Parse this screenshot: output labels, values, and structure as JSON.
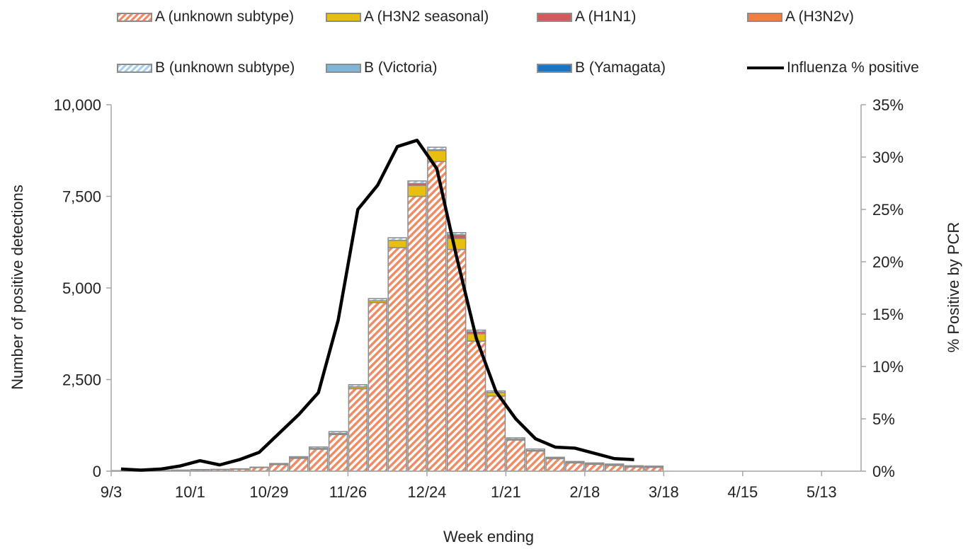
{
  "legend": {
    "items": [
      {
        "key": "a_unknown",
        "label": "A (unknown subtype)",
        "swatch": "hatch-orange"
      },
      {
        "key": "a_h3n2",
        "label": "A (H3N2 seasonal)",
        "swatch": "solid",
        "color": "#E8BE10"
      },
      {
        "key": "a_h1n1",
        "label": "A (H1N1)",
        "swatch": "solid",
        "color": "#D25A5A"
      },
      {
        "key": "a_h3n2v",
        "label": "A (H3N2v)",
        "swatch": "solid",
        "color": "#EE7E46"
      },
      {
        "key": "b_unknown",
        "label": "B (unknown subtype)",
        "swatch": "hatch-blue"
      },
      {
        "key": "b_victoria",
        "label": "B (Victoria)",
        "swatch": "solid",
        "color": "#7FB6D8"
      },
      {
        "key": "b_yamagata",
        "label": "B (Yamagata)",
        "swatch": "solid",
        "color": "#1D75C2"
      },
      {
        "key": "pct",
        "label": "Influenza % positive",
        "swatch": "line",
        "color": "#000000"
      }
    ]
  },
  "chart_data": {
    "type": "bar",
    "stacked": true,
    "xlabel": "Week ending",
    "ylabel": "Number of positive detections",
    "y2label": "% Positive by PCR",
    "ylim": [
      0,
      10000
    ],
    "y2lim": [
      0,
      35
    ],
    "yticks": [
      "0",
      "2,500",
      "5,000",
      "7,500",
      "10,000"
    ],
    "y2ticks": [
      "0%",
      "5%",
      "10%",
      "15%",
      "20%",
      "25%",
      "30%",
      "35%"
    ],
    "xtick_labels": [
      "9/3",
      "10/1",
      "10/29",
      "11/26",
      "12/24",
      "1/21",
      "2/18",
      "3/18",
      "4/15",
      "5/13"
    ],
    "categories": [
      "9/3",
      "9/10",
      "9/17",
      "9/24",
      "10/1",
      "10/8",
      "10/15",
      "10/22",
      "10/29",
      "11/5",
      "11/12",
      "11/19",
      "11/26",
      "12/3",
      "12/10",
      "12/17",
      "12/24",
      "12/31",
      "1/7",
      "1/14",
      "1/21",
      "1/28",
      "2/4",
      "2/11",
      "2/18",
      "2/25",
      "3/4",
      "3/11",
      "3/18",
      "3/25",
      "4/1",
      "4/8",
      "4/15",
      "4/22",
      "4/29",
      "5/6",
      "5/13",
      "5/20"
    ],
    "series": [
      {
        "name": "A (unknown subtype)",
        "color": "#F08C64",
        "pattern": "hatch-orange",
        "values": [
          10,
          10,
          15,
          25,
          40,
          45,
          60,
          100,
          180,
          350,
          600,
          1000,
          2250,
          4600,
          6100,
          7500,
          8450,
          6050,
          3550,
          2050,
          850,
          550,
          340,
          230,
          190,
          160,
          120,
          110,
          null,
          null,
          null,
          null,
          null,
          null,
          null,
          null,
          null,
          null
        ]
      },
      {
        "name": "A (H3N2 seasonal)",
        "color": "#E8BE10",
        "values": [
          0,
          0,
          0,
          0,
          0,
          0,
          0,
          0,
          10,
          15,
          20,
          30,
          50,
          50,
          200,
          300,
          300,
          300,
          200,
          100,
          20,
          15,
          10,
          5,
          5,
          5,
          3,
          3,
          null,
          null,
          null,
          null,
          null,
          null,
          null,
          null,
          null,
          null
        ]
      },
      {
        "name": "A (H1N1)",
        "color": "#D25A5A",
        "values": [
          0,
          0,
          0,
          0,
          0,
          0,
          0,
          0,
          0,
          0,
          0,
          0,
          0,
          0,
          0,
          50,
          20,
          100,
          50,
          0,
          0,
          0,
          0,
          0,
          0,
          0,
          0,
          0,
          null,
          null,
          null,
          null,
          null,
          null,
          null,
          null,
          null,
          null
        ]
      },
      {
        "name": "A (H3N2v)",
        "color": "#EE7E46",
        "values": [
          0,
          0,
          0,
          0,
          0,
          0,
          0,
          0,
          0,
          0,
          0,
          0,
          0,
          0,
          0,
          0,
          0,
          0,
          0,
          0,
          0,
          0,
          0,
          0,
          0,
          0,
          0,
          0,
          null,
          null,
          null,
          null,
          null,
          null,
          null,
          null,
          null,
          null
        ]
      },
      {
        "name": "B (unknown subtype)",
        "color": "#A7CFE8",
        "pattern": "hatch-blue",
        "values": [
          5,
          5,
          5,
          5,
          5,
          5,
          5,
          10,
          20,
          30,
          40,
          50,
          60,
          60,
          70,
          70,
          70,
          60,
          50,
          40,
          40,
          40,
          30,
          30,
          30,
          30,
          25,
          25,
          null,
          null,
          null,
          null,
          null,
          null,
          null,
          null,
          null,
          null
        ]
      },
      {
        "name": "B (Victoria)",
        "color": "#7FB6D8",
        "values": [
          0,
          0,
          0,
          0,
          0,
          0,
          0,
          0,
          0,
          0,
          0,
          0,
          0,
          0,
          0,
          0,
          0,
          0,
          0,
          0,
          0,
          0,
          0,
          0,
          0,
          0,
          0,
          0,
          null,
          null,
          null,
          null,
          null,
          null,
          null,
          null,
          null,
          null
        ]
      },
      {
        "name": "B (Yamagata)",
        "color": "#1D75C2",
        "values": [
          0,
          0,
          0,
          0,
          0,
          0,
          0,
          0,
          0,
          0,
          0,
          0,
          0,
          0,
          0,
          0,
          0,
          0,
          0,
          0,
          0,
          0,
          0,
          0,
          0,
          0,
          0,
          0,
          null,
          null,
          null,
          null,
          null,
          null,
          null,
          null,
          null,
          null
        ]
      }
    ],
    "line": {
      "name": "Influenza % positive",
      "axis": "y2",
      "color": "#000000",
      "values": [
        0.2,
        0.1,
        0.2,
        0.5,
        1.0,
        0.6,
        1.1,
        1.8,
        3.6,
        5.4,
        7.5,
        14.4,
        25.0,
        27.3,
        31.0,
        31.6,
        28.9,
        20.5,
        12.7,
        7.6,
        5.0,
        3.1,
        2.3,
        2.2,
        1.7,
        1.2,
        1.1,
        null,
        null,
        null,
        null,
        null,
        null,
        null,
        null,
        null,
        null,
        null
      ]
    },
    "legend_position": "top",
    "grid": false
  }
}
